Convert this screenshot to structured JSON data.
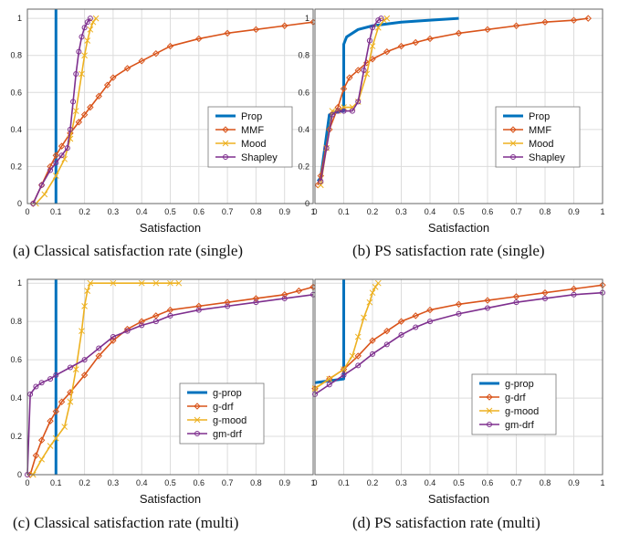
{
  "figure": {
    "captions": [
      "(a) Classical satisfaction rate (single)",
      "(b) PS satisfaction rate (single)",
      "(c) Classical satisfaction rate (multi)",
      "(d) PS satisfaction rate (multi)"
    ]
  },
  "colors": {
    "blue": "#0072BD",
    "orange": "#D95319",
    "yellow": "#EDB120",
    "purple": "#7E2F8E"
  },
  "chart_data": [
    {
      "type": "line",
      "xlabel": "Satisfaction",
      "ylabel": "",
      "xlim": [
        0,
        1
      ],
      "ylim": [
        0,
        1.05
      ],
      "xticks": [
        "0",
        "0.1",
        "0.2",
        "0.3",
        "0.4",
        "0.5",
        "0.6",
        "0.7",
        "0.8",
        "0.9",
        "1"
      ],
      "yticks": [
        "0",
        "0.2",
        "0.4",
        "0.6",
        "0.8",
        "1"
      ],
      "grid": true,
      "legend_position": "center-right",
      "series": [
        {
          "name": "Prop",
          "color": "#0072BD",
          "marker": "none",
          "x": [
            0.1,
            0.1
          ],
          "y": [
            0,
            1.05
          ]
        },
        {
          "name": "MMF",
          "color": "#D95319",
          "marker": "diamond",
          "x": [
            0.02,
            0.05,
            0.08,
            0.1,
            0.12,
            0.15,
            0.18,
            0.2,
            0.22,
            0.25,
            0.28,
            0.3,
            0.35,
            0.4,
            0.45,
            0.5,
            0.6,
            0.7,
            0.8,
            0.9,
            1.0
          ],
          "y": [
            0,
            0.1,
            0.2,
            0.26,
            0.31,
            0.38,
            0.44,
            0.48,
            0.52,
            0.58,
            0.64,
            0.68,
            0.73,
            0.77,
            0.81,
            0.85,
            0.89,
            0.92,
            0.94,
            0.96,
            0.98
          ]
        },
        {
          "name": "Mood",
          "color": "#EDB120",
          "marker": "x",
          "x": [
            0.03,
            0.06,
            0.1,
            0.13,
            0.15,
            0.17,
            0.19,
            0.2,
            0.21,
            0.22,
            0.23,
            0.24
          ],
          "y": [
            0,
            0.05,
            0.15,
            0.24,
            0.35,
            0.5,
            0.7,
            0.8,
            0.88,
            0.94,
            0.98,
            1.0
          ]
        },
        {
          "name": "Shapley",
          "color": "#7E2F8E",
          "marker": "circle",
          "x": [
            0.02,
            0.05,
            0.08,
            0.1,
            0.12,
            0.14,
            0.15,
            0.16,
            0.17,
            0.18,
            0.19,
            0.2,
            0.21,
            0.22
          ],
          "y": [
            0,
            0.1,
            0.18,
            0.22,
            0.26,
            0.3,
            0.4,
            0.55,
            0.7,
            0.82,
            0.9,
            0.95,
            0.98,
            1.0
          ]
        }
      ]
    },
    {
      "type": "line",
      "xlabel": "Satisfaction",
      "ylabel": "",
      "xlim": [
        0,
        1
      ],
      "ylim": [
        0,
        1.05
      ],
      "xticks": [
        "0",
        "0.1",
        "0.2",
        "0.3",
        "0.4",
        "0.5",
        "0.6",
        "0.7",
        "0.8",
        "0.9",
        "1"
      ],
      "yticks": [
        "0",
        "0.2",
        "0.4",
        "0.6",
        "0.8",
        "1"
      ],
      "grid": true,
      "legend_position": "center-right",
      "series": [
        {
          "name": "Prop",
          "color": "#0072BD",
          "marker": "none",
          "x": [
            0.01,
            0.02,
            0.05,
            0.09,
            0.1,
            0.1,
            0.11,
            0.15,
            0.2,
            0.25,
            0.3,
            0.4,
            0.5
          ],
          "y": [
            0.12,
            0.14,
            0.48,
            0.5,
            0.5,
            0.86,
            0.9,
            0.94,
            0.96,
            0.97,
            0.98,
            0.99,
            1.0
          ]
        },
        {
          "name": "MMF",
          "color": "#D95319",
          "marker": "diamond",
          "x": [
            0.01,
            0.02,
            0.05,
            0.08,
            0.1,
            0.12,
            0.15,
            0.18,
            0.2,
            0.25,
            0.3,
            0.35,
            0.4,
            0.5,
            0.6,
            0.7,
            0.8,
            0.9,
            0.95
          ],
          "y": [
            0.1,
            0.15,
            0.4,
            0.52,
            0.62,
            0.68,
            0.72,
            0.76,
            0.78,
            0.82,
            0.85,
            0.87,
            0.89,
            0.92,
            0.94,
            0.96,
            0.98,
            0.99,
            1.0
          ]
        },
        {
          "name": "Mood",
          "color": "#EDB120",
          "marker": "x",
          "x": [
            0.02,
            0.04,
            0.06,
            0.08,
            0.1,
            0.13,
            0.15,
            0.18,
            0.2,
            0.22,
            0.24,
            0.25
          ],
          "y": [
            0.1,
            0.3,
            0.5,
            0.5,
            0.52,
            0.52,
            0.55,
            0.7,
            0.85,
            0.95,
            0.99,
            1.0
          ]
        },
        {
          "name": "Shapley",
          "color": "#7E2F8E",
          "marker": "circle",
          "x": [
            0.02,
            0.04,
            0.06,
            0.08,
            0.1,
            0.13,
            0.15,
            0.17,
            0.19,
            0.2,
            0.22,
            0.23
          ],
          "y": [
            0.12,
            0.3,
            0.48,
            0.5,
            0.5,
            0.5,
            0.55,
            0.72,
            0.88,
            0.95,
            0.99,
            1.0
          ]
        }
      ]
    },
    {
      "type": "line",
      "xlabel": "Satisfaction",
      "ylabel": "",
      "xlim": [
        0,
        1
      ],
      "ylim": [
        0,
        1.02
      ],
      "xticks": [
        "0",
        "0.1",
        "0.2",
        "0.3",
        "0.4",
        "0.5",
        "0.6",
        "0.7",
        "0.8",
        "0.9",
        "1"
      ],
      "yticks": [
        "0",
        "0.2",
        "0.4",
        "0.6",
        "0.8",
        "1"
      ],
      "grid": true,
      "legend_position": "lower-right",
      "series": [
        {
          "name": "g-prop",
          "color": "#0072BD",
          "marker": "none",
          "x": [
            0.1,
            0.1
          ],
          "y": [
            0,
            1.02
          ]
        },
        {
          "name": "g-drf",
          "color": "#D95319",
          "marker": "diamond",
          "x": [
            0.01,
            0.03,
            0.05,
            0.08,
            0.1,
            0.12,
            0.15,
            0.2,
            0.25,
            0.3,
            0.35,
            0.4,
            0.45,
            0.5,
            0.6,
            0.7,
            0.8,
            0.9,
            0.95,
            1.0
          ],
          "y": [
            0,
            0.1,
            0.18,
            0.28,
            0.33,
            0.38,
            0.43,
            0.52,
            0.62,
            0.7,
            0.76,
            0.8,
            0.83,
            0.86,
            0.88,
            0.9,
            0.92,
            0.94,
            0.96,
            0.98
          ]
        },
        {
          "name": "g-mood",
          "color": "#EDB120",
          "marker": "x",
          "x": [
            0.02,
            0.05,
            0.08,
            0.1,
            0.13,
            0.15,
            0.17,
            0.19,
            0.2,
            0.21,
            0.22,
            0.3,
            0.4,
            0.45,
            0.5,
            0.53
          ],
          "y": [
            0,
            0.08,
            0.15,
            0.19,
            0.25,
            0.38,
            0.55,
            0.75,
            0.88,
            0.96,
            1.0,
            1.0,
            1.0,
            1.0,
            1.0,
            1.0
          ]
        },
        {
          "name": "gm-drf",
          "color": "#7E2F8E",
          "marker": "circle",
          "x": [
            0.0,
            0.01,
            0.03,
            0.05,
            0.08,
            0.1,
            0.15,
            0.2,
            0.25,
            0.3,
            0.35,
            0.4,
            0.45,
            0.5,
            0.6,
            0.7,
            0.8,
            0.9,
            1.0
          ],
          "y": [
            0,
            0.42,
            0.46,
            0.48,
            0.5,
            0.52,
            0.56,
            0.6,
            0.66,
            0.72,
            0.75,
            0.78,
            0.8,
            0.83,
            0.86,
            0.88,
            0.9,
            0.92,
            0.94
          ]
        }
      ]
    },
    {
      "type": "line",
      "xlabel": "Satisfaction",
      "ylabel": "",
      "xlim": [
        0,
        1
      ],
      "ylim": [
        0,
        1.02
      ],
      "xticks": [
        "0",
        "0.1",
        "0.2",
        "0.3",
        "0.4",
        "0.5",
        "0.6",
        "0.7",
        "0.8",
        "0.9",
        "1"
      ],
      "yticks": [],
      "grid": true,
      "legend_position": "lower-right",
      "series": [
        {
          "name": "g-prop",
          "color": "#0072BD",
          "marker": "none",
          "x": [
            0.0,
            0.1,
            0.1
          ],
          "y": [
            0.48,
            0.5,
            1.02
          ]
        },
        {
          "name": "g-drf",
          "color": "#D95319",
          "marker": "diamond",
          "x": [
            0.0,
            0.05,
            0.1,
            0.15,
            0.2,
            0.25,
            0.3,
            0.35,
            0.4,
            0.5,
            0.6,
            0.7,
            0.8,
            0.9,
            1.0
          ],
          "y": [
            0.45,
            0.5,
            0.55,
            0.62,
            0.7,
            0.75,
            0.8,
            0.83,
            0.86,
            0.89,
            0.91,
            0.93,
            0.95,
            0.97,
            0.99
          ]
        },
        {
          "name": "g-mood",
          "color": "#EDB120",
          "marker": "x",
          "x": [
            0.0,
            0.05,
            0.1,
            0.13,
            0.15,
            0.17,
            0.19,
            0.2,
            0.21,
            0.22
          ],
          "y": [
            0.45,
            0.5,
            0.55,
            0.62,
            0.72,
            0.82,
            0.9,
            0.95,
            0.98,
            1.0
          ]
        },
        {
          "name": "gm-drf",
          "color": "#7E2F8E",
          "marker": "circle",
          "x": [
            0.0,
            0.05,
            0.1,
            0.15,
            0.2,
            0.25,
            0.3,
            0.35,
            0.4,
            0.5,
            0.6,
            0.7,
            0.8,
            0.9,
            1.0
          ],
          "y": [
            0.42,
            0.47,
            0.52,
            0.57,
            0.63,
            0.68,
            0.73,
            0.77,
            0.8,
            0.84,
            0.87,
            0.9,
            0.92,
            0.94,
            0.95
          ]
        }
      ]
    }
  ]
}
